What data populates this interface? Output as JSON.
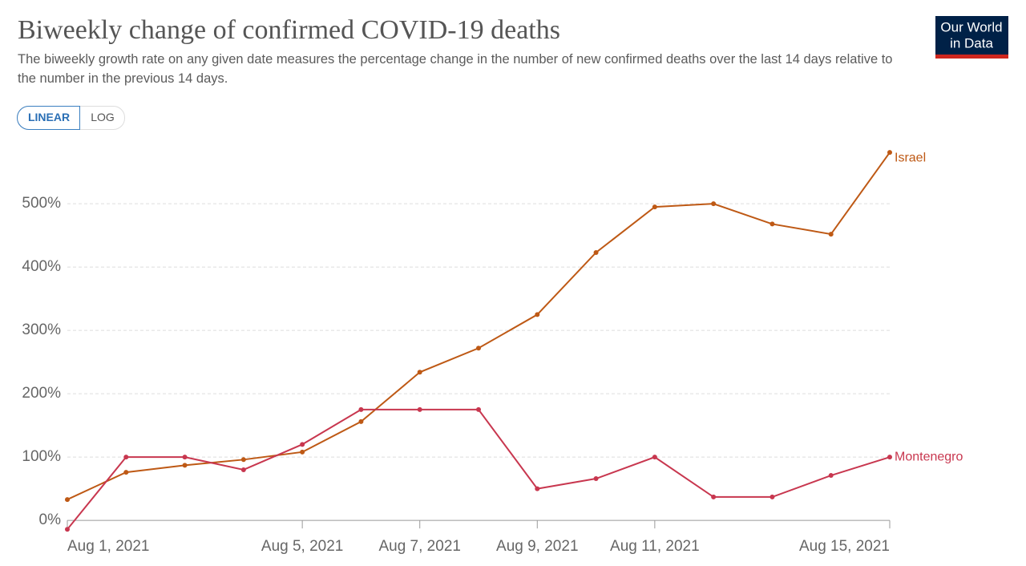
{
  "chart_data": {
    "type": "line",
    "title": "Biweekly change of confirmed COVID-19 deaths",
    "subtitle": "The biweekly growth rate on any given date measures the percentage change in the number of new confirmed deaths over the last 14 days relative to the number in the previous 14 days.",
    "x": [
      "2021-08-01",
      "2021-08-02",
      "2021-08-03",
      "2021-08-04",
      "2021-08-05",
      "2021-08-06",
      "2021-08-07",
      "2021-08-08",
      "2021-08-09",
      "2021-08-10",
      "2021-08-11",
      "2021-08-12",
      "2021-08-13",
      "2021-08-14",
      "2021-08-15"
    ],
    "series": [
      {
        "name": "Israel",
        "color": "#be5915",
        "values": [
          33,
          76,
          87,
          96,
          108,
          156,
          234,
          272,
          325,
          423,
          495,
          500,
          468,
          452,
          581
        ]
      },
      {
        "name": "Montenegro",
        "color": "#c8374f",
        "values": [
          -14,
          100,
          100,
          80,
          120,
          175,
          175,
          175,
          50,
          66,
          100,
          37,
          37,
          71,
          100
        ]
      }
    ],
    "xlim": [
      "2021-08-01",
      "2021-08-15"
    ],
    "xticks": [
      {
        "value": "2021-08-01",
        "label": "Aug 1, 2021"
      },
      {
        "value": "2021-08-05",
        "label": "Aug 5, 2021"
      },
      {
        "value": "2021-08-07",
        "label": "Aug 7, 2021"
      },
      {
        "value": "2021-08-09",
        "label": "Aug 9, 2021"
      },
      {
        "value": "2021-08-11",
        "label": "Aug 11, 2021"
      },
      {
        "value": "2021-08-15",
        "label": "Aug 15, 2021"
      }
    ],
    "ylim": [
      -15,
      585
    ],
    "yticks": [
      {
        "value": 0,
        "label": "0%"
      },
      {
        "value": 100,
        "label": "100%"
      },
      {
        "value": 200,
        "label": "200%"
      },
      {
        "value": 300,
        "label": "300%"
      },
      {
        "value": 400,
        "label": "400%"
      },
      {
        "value": 500,
        "label": "500%"
      }
    ],
    "grid": true,
    "log_scale": false
  },
  "controls": [
    "LINEAR",
    "LOG"
  ],
  "logo": [
    "Our World",
    "in Data"
  ]
}
